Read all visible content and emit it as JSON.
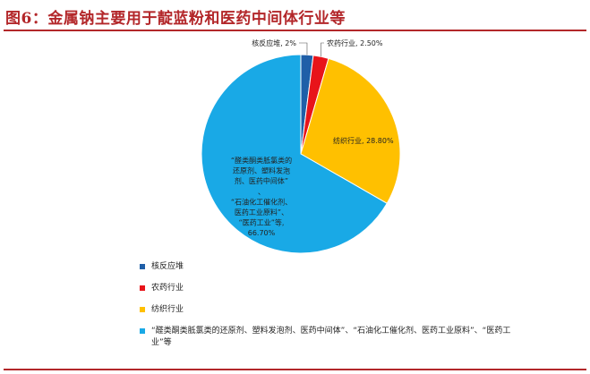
{
  "title": "图6：金属钠主要用于靛蓝粉和医药中间体行业等",
  "chart_data": {
    "type": "pie",
    "title": "图6：金属钠主要用于靛蓝粉和医药中间体行业等",
    "slices": [
      {
        "name": "核反应堆",
        "value": 2.0,
        "label": "核反应堆, 2%",
        "color": "#1f5fa8"
      },
      {
        "name": "农药行业",
        "value": 2.5,
        "label": "农药行业, 2.50%",
        "color": "#e8141a"
      },
      {
        "name": "纺织行业",
        "value": 28.8,
        "label": "纺织行业, 28.80%",
        "color": "#ffc000"
      },
      {
        "name": "“醛类酮类胝氯类的还原剂、塑料发泡剂、医药中间体”、“石油化工催化剂、医药工业原料”、“医药工业”等",
        "value": 66.7,
        "label_lines": [
          "“醛类酮类胝氯类的",
          "还原剂、塑料发泡",
          "剂、医药中间体”",
          "、",
          "“石油化工催化剂、",
          "医药工业原料”、",
          "“医药工业”等,",
          "66.70%"
        ],
        "color": "#19a9e6"
      }
    ],
    "legend_placement": "bottom"
  },
  "legend": [
    {
      "text": "核反应堆",
      "color": "#1f5fa8"
    },
    {
      "text": "农药行业",
      "color": "#e8141a"
    },
    {
      "text": "纺织行业",
      "color": "#ffc000"
    },
    {
      "text": "“醛类酮类胝氯类的还原剂、塑料发泡剂、医药中间体”、“石油化工催化剂、医药工业原料”、“医药工业”等",
      "color": "#19a9e6"
    }
  ]
}
